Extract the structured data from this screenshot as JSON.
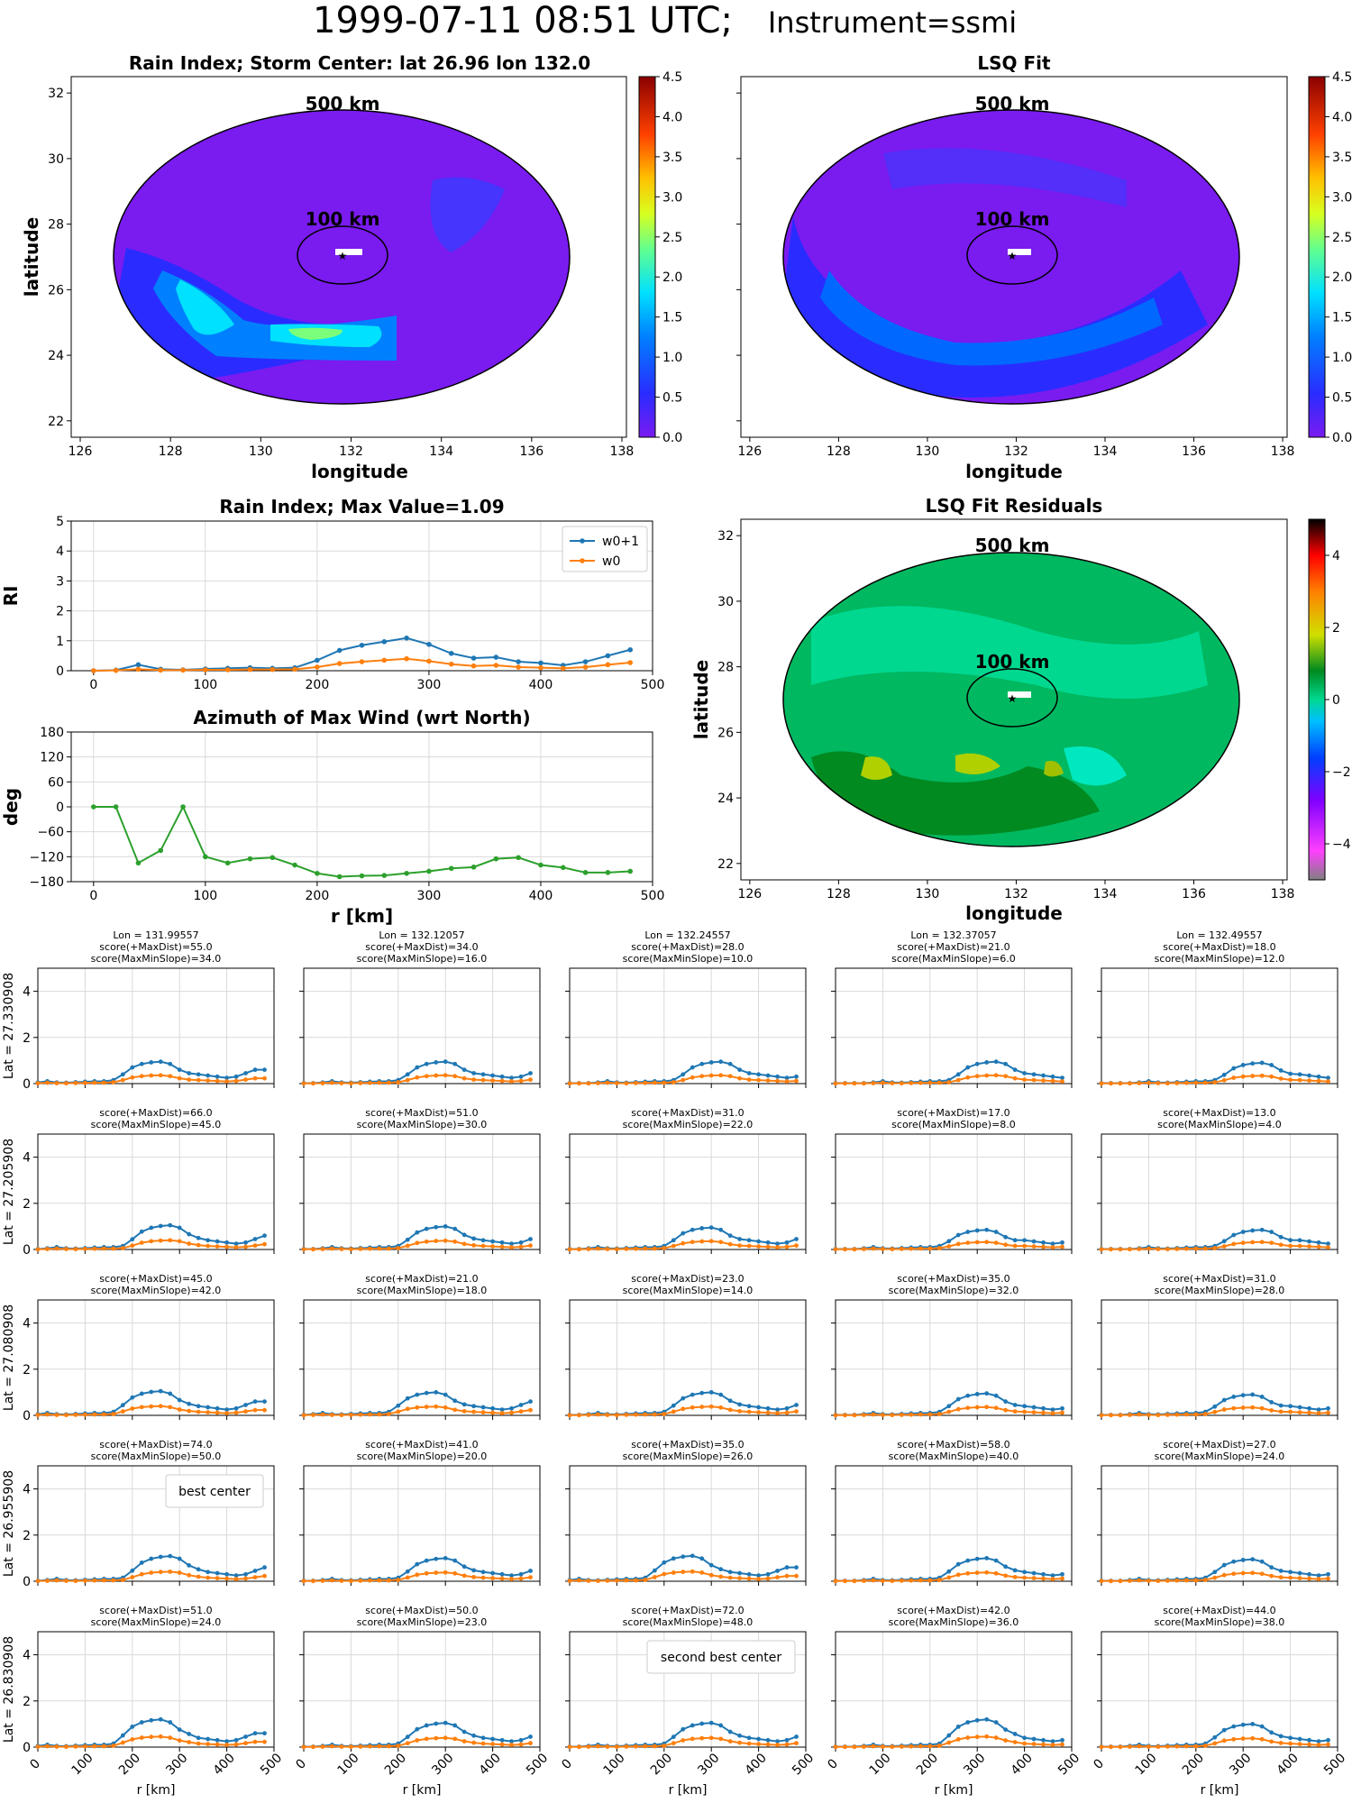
{
  "header": {
    "datetime": "1999-07-11 08:51 UTC;",
    "instrument": "Instrument=ssmi"
  },
  "colors": {
    "w0p1": "#1f77b4",
    "w0": "#ff7f0e",
    "azimuth": "#2ca02c",
    "best": "#800080",
    "second": "#ff0000"
  },
  "maps": {
    "rain_index": {
      "title": "Rain Index; Storm Center: lat 26.96 lon 132.0",
      "xlabel": "longitude",
      "ylabel": "latitude",
      "xticks": [
        "126",
        "128",
        "130",
        "132",
        "134",
        "136",
        "138"
      ],
      "yticks": [
        "22",
        "24",
        "26",
        "28",
        "30",
        "32"
      ],
      "ring_outer": "500 km",
      "ring_inner": "100 km",
      "colorbar_ticks": [
        "0.0",
        "0.5",
        "1.0",
        "1.5",
        "2.0",
        "2.5",
        "3.0",
        "3.5",
        "4.0",
        "4.5"
      ]
    },
    "lsq_fit": {
      "title": "LSQ Fit",
      "xlabel": "longitude",
      "xticks": [
        "126",
        "128",
        "130",
        "132",
        "134",
        "136",
        "138"
      ],
      "ring_outer": "500 km",
      "ring_inner": "100 km",
      "colorbar_ticks": [
        "0.0",
        "0.5",
        "1.0",
        "1.5",
        "2.0",
        "2.5",
        "3.0",
        "3.5",
        "4.0",
        "4.5"
      ]
    },
    "residuals": {
      "title": "LSQ Fit Residuals",
      "xlabel": "longitude",
      "ylabel": "latitude",
      "xticks": [
        "126",
        "128",
        "130",
        "132",
        "134",
        "136",
        "138"
      ],
      "yticks": [
        "22",
        "24",
        "26",
        "28",
        "30",
        "32"
      ],
      "ring_outer": "500 km",
      "ring_inner": "100 km",
      "colorbar_ticks": [
        "−4",
        "−2",
        "0",
        "2",
        "4"
      ]
    }
  },
  "chart_data": [
    {
      "id": "rain_index_profile",
      "type": "line",
      "title": "Rain Index; Max Value=1.09",
      "xlabel": "",
      "ylabel": "RI",
      "xlim": [
        -20,
        500
      ],
      "ylim": [
        0,
        5
      ],
      "xticks": [
        "0",
        "100",
        "200",
        "300",
        "400",
        "500"
      ],
      "yticks": [
        "0",
        "1",
        "2",
        "3",
        "4",
        "5"
      ],
      "x": [
        0,
        20,
        40,
        60,
        80,
        100,
        120,
        140,
        160,
        180,
        200,
        220,
        240,
        260,
        280,
        300,
        320,
        340,
        360,
        380,
        400,
        420,
        440,
        460,
        480
      ],
      "series": [
        {
          "name": "w0+1",
          "values": [
            0.0,
            0.02,
            0.2,
            0.05,
            0.03,
            0.06,
            0.08,
            0.1,
            0.08,
            0.1,
            0.35,
            0.68,
            0.85,
            0.97,
            1.09,
            0.88,
            0.58,
            0.42,
            0.45,
            0.3,
            0.26,
            0.18,
            0.3,
            0.5,
            0.7
          ]
        },
        {
          "name": "w0",
          "values": [
            0.0,
            0.01,
            0.05,
            0.02,
            0.02,
            0.03,
            0.03,
            0.04,
            0.04,
            0.05,
            0.12,
            0.24,
            0.3,
            0.35,
            0.4,
            0.32,
            0.22,
            0.16,
            0.18,
            0.12,
            0.1,
            0.08,
            0.12,
            0.2,
            0.27
          ]
        }
      ],
      "legend": "top-right"
    },
    {
      "id": "azimuth_profile",
      "type": "line",
      "title": "Azimuth of Max Wind (wrt North)",
      "xlabel": "r [km]",
      "ylabel": "deg",
      "xlim": [
        -20,
        500
      ],
      "ylim": [
        -180,
        180
      ],
      "xticks": [
        "0",
        "100",
        "200",
        "300",
        "400",
        "500"
      ],
      "yticks": [
        "−180",
        "−120",
        "−60",
        "0",
        "60",
        "120",
        "180"
      ],
      "x": [
        0,
        20,
        40,
        60,
        80,
        100,
        120,
        140,
        160,
        180,
        200,
        220,
        240,
        260,
        280,
        300,
        320,
        340,
        360,
        380,
        400,
        420,
        440,
        460,
        480
      ],
      "series": [
        {
          "name": "",
          "values": [
            0,
            0,
            -135,
            -105,
            0,
            -120,
            -135,
            -125,
            -122,
            -140,
            -160,
            -168,
            -166,
            -165,
            -160,
            -155,
            -148,
            -145,
            -125,
            -122,
            -140,
            -146,
            -158,
            -158,
            -155
          ]
        }
      ]
    },
    {
      "id": "score_grid",
      "type": "line",
      "xlabel": "r [km]",
      "xlim": [
        0,
        500
      ],
      "ylim": [
        0,
        5
      ],
      "xticks": [
        "0",
        "100",
        "200",
        "300",
        "400",
        "500"
      ],
      "yticks": [
        "0",
        "2",
        "4"
      ],
      "x": [
        0,
        20,
        40,
        60,
        80,
        100,
        120,
        140,
        160,
        180,
        200,
        220,
        240,
        260,
        280,
        300,
        320,
        340,
        360,
        380,
        400,
        420,
        440,
        460,
        480
      ],
      "series_names": [
        "w0+1",
        "w0"
      ],
      "columns": [
        "Lon = 131.99557",
        "Lon = 132.12057",
        "Lon = 132.24557",
        "Lon = 132.37057",
        "Lon = 132.49557"
      ],
      "rows": [
        {
          "label": "Lat = 27.330908",
          "cells": [
            {
              "s1": "score(+MaxDist)=55.0",
              "s2": "score(MaxMinSlope)=34.0",
              "peak": 0.95,
              "shift": -20
            },
            {
              "s1": "score(+MaxDist)=34.0",
              "s2": "score(MaxMinSlope)=16.0",
              "peak": 0.95,
              "shift": 20
            },
            {
              "s1": "score(+MaxDist)=28.0",
              "s2": "score(MaxMinSlope)=10.0",
              "peak": 0.95,
              "shift": 40
            },
            {
              "s1": "score(+MaxDist)=21.0",
              "s2": "score(MaxMinSlope)=6.0",
              "peak": 0.95,
              "shift": 60
            },
            {
              "s1": "score(+MaxDist)=18.0",
              "s2": "score(MaxMinSlope)=12.0",
              "peak": 0.9,
              "shift": 60
            }
          ]
        },
        {
          "label": "Lat = 27.205908",
          "cells": [
            {
              "s1": "score(+MaxDist)=66.0",
              "s2": "score(MaxMinSlope)=45.0",
              "peak": 1.05,
              "shift": 0
            },
            {
              "s1": "score(+MaxDist)=51.0",
              "s2": "score(MaxMinSlope)=30.0",
              "peak": 1.0,
              "shift": 20
            },
            {
              "s1": "score(+MaxDist)=31.0",
              "s2": "score(MaxMinSlope)=22.0",
              "peak": 0.95,
              "shift": 20
            },
            {
              "s1": "score(+MaxDist)=17.0",
              "s2": "score(MaxMinSlope)=8.0",
              "peak": 0.85,
              "shift": 40
            },
            {
              "s1": "score(+MaxDist)=13.0",
              "s2": "score(MaxMinSlope)=4.0",
              "peak": 0.85,
              "shift": 60
            }
          ]
        },
        {
          "label": "Lat = 27.080908",
          "cells": [
            {
              "s1": "score(+MaxDist)=45.0",
              "s2": "score(MaxMinSlope)=42.0",
              "peak": 1.05,
              "shift": -20
            },
            {
              "s1": "score(+MaxDist)=21.0",
              "s2": "score(MaxMinSlope)=18.0",
              "peak": 1.0,
              "shift": 0
            },
            {
              "s1": "score(+MaxDist)=23.0",
              "s2": "score(MaxMinSlope)=14.0",
              "peak": 1.0,
              "shift": 20
            },
            {
              "s1": "score(+MaxDist)=35.0",
              "s2": "score(MaxMinSlope)=32.0",
              "peak": 0.95,
              "shift": 40
            },
            {
              "s1": "score(+MaxDist)=31.0",
              "s2": "score(MaxMinSlope)=28.0",
              "peak": 0.9,
              "shift": 40
            }
          ]
        },
        {
          "label": "Lat = 26.955908",
          "cells": [
            {
              "s1": "score(+MaxDist)=74.0",
              "s2": "score(MaxMinSlope)=50.0",
              "peak": 1.09,
              "shift": 0,
              "highlight": "best",
              "note": "best center"
            },
            {
              "s1": "score(+MaxDist)=41.0",
              "s2": "score(MaxMinSlope)=20.0",
              "peak": 1.0,
              "shift": 20
            },
            {
              "s1": "score(+MaxDist)=35.0",
              "s2": "score(MaxMinSlope)=26.0",
              "peak": 1.1,
              "shift": -20
            },
            {
              "s1": "score(+MaxDist)=58.0",
              "s2": "score(MaxMinSlope)=40.0",
              "peak": 1.0,
              "shift": 40
            },
            {
              "s1": "score(+MaxDist)=27.0",
              "s2": "score(MaxMinSlope)=24.0",
              "peak": 0.95,
              "shift": 40
            }
          ]
        },
        {
          "label": "Lat = 26.830908",
          "cells": [
            {
              "s1": "score(+MaxDist)=51.0",
              "s2": "score(MaxMinSlope)=24.0",
              "peak": 1.2,
              "shift": -20
            },
            {
              "s1": "score(+MaxDist)=50.0",
              "s2": "score(MaxMinSlope)=23.0",
              "peak": 1.05,
              "shift": 20
            },
            {
              "s1": "score(+MaxDist)=72.0",
              "s2": "score(MaxMinSlope)=48.0",
              "peak": 1.05,
              "shift": 20,
              "highlight": "second",
              "note": "second best center"
            },
            {
              "s1": "score(+MaxDist)=42.0",
              "s2": "score(MaxMinSlope)=36.0",
              "peak": 1.2,
              "shift": 40
            },
            {
              "s1": "score(+MaxDist)=44.0",
              "s2": "score(MaxMinSlope)=38.0",
              "peak": 1.0,
              "shift": 40
            }
          ]
        }
      ]
    }
  ]
}
